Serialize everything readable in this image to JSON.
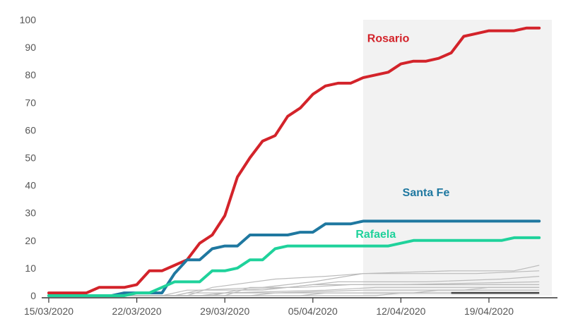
{
  "chart_data": {
    "type": "line",
    "title": "",
    "xlabel": "",
    "ylabel": "",
    "x_start": "2020-03-15",
    "x_end": "2020-04-24",
    "ylim": [
      0,
      100
    ],
    "y_ticks": [
      0,
      10,
      20,
      30,
      40,
      50,
      60,
      70,
      80,
      90,
      100
    ],
    "x_ticks": [
      {
        "date": "2020-03-15",
        "label": "15/03/2020"
      },
      {
        "date": "2020-03-22",
        "label": "22/03/2020"
      },
      {
        "date": "2020-03-29",
        "label": "29/03/2020"
      },
      {
        "date": "2020-04-05",
        "label": "05/04/2020"
      },
      {
        "date": "2020-04-12",
        "label": "12/04/2020"
      },
      {
        "date": "2020-04-19",
        "label": "19/04/2020"
      }
    ],
    "highlight_range": {
      "from": "2020-04-09",
      "to": "2020-04-24"
    },
    "grid": false,
    "series": [
      {
        "name": "Rosario",
        "color": "#d3232a",
        "label_date": "2020-04-11",
        "label_value": 92,
        "points": [
          [
            "2020-03-15",
            1
          ],
          [
            "2020-03-16",
            1
          ],
          [
            "2020-03-17",
            1
          ],
          [
            "2020-03-18",
            1
          ],
          [
            "2020-03-19",
            3
          ],
          [
            "2020-03-20",
            3
          ],
          [
            "2020-03-21",
            3
          ],
          [
            "2020-03-22",
            4
          ],
          [
            "2020-03-23",
            9
          ],
          [
            "2020-03-24",
            9
          ],
          [
            "2020-03-25",
            11
          ],
          [
            "2020-03-26",
            13
          ],
          [
            "2020-03-27",
            19
          ],
          [
            "2020-03-28",
            22
          ],
          [
            "2020-03-29",
            29
          ],
          [
            "2020-03-30",
            43
          ],
          [
            "2020-03-31",
            50
          ],
          [
            "2020-04-01",
            56
          ],
          [
            "2020-04-02",
            58
          ],
          [
            "2020-04-03",
            65
          ],
          [
            "2020-04-04",
            68
          ],
          [
            "2020-04-05",
            73
          ],
          [
            "2020-04-06",
            76
          ],
          [
            "2020-04-07",
            77
          ],
          [
            "2020-04-08",
            77
          ],
          [
            "2020-04-09",
            79
          ],
          [
            "2020-04-10",
            80
          ],
          [
            "2020-04-11",
            81
          ],
          [
            "2020-04-12",
            84
          ],
          [
            "2020-04-13",
            85
          ],
          [
            "2020-04-14",
            85
          ],
          [
            "2020-04-15",
            86
          ],
          [
            "2020-04-16",
            88
          ],
          [
            "2020-04-17",
            94
          ],
          [
            "2020-04-18",
            95
          ],
          [
            "2020-04-19",
            96
          ],
          [
            "2020-04-20",
            96
          ],
          [
            "2020-04-21",
            96
          ],
          [
            "2020-04-22",
            97
          ],
          [
            "2020-04-23",
            97
          ]
        ]
      },
      {
        "name": "Santa Fe",
        "color": "#1f78a0",
        "label_date": "2020-04-14",
        "label_value": 36,
        "points": [
          [
            "2020-03-15",
            0
          ],
          [
            "2020-03-16",
            0
          ],
          [
            "2020-03-17",
            0
          ],
          [
            "2020-03-18",
            0
          ],
          [
            "2020-03-19",
            0
          ],
          [
            "2020-03-20",
            0
          ],
          [
            "2020-03-21",
            1
          ],
          [
            "2020-03-22",
            1
          ],
          [
            "2020-03-23",
            1
          ],
          [
            "2020-03-24",
            1
          ],
          [
            "2020-03-25",
            8
          ],
          [
            "2020-03-26",
            13
          ],
          [
            "2020-03-27",
            13
          ],
          [
            "2020-03-28",
            17
          ],
          [
            "2020-03-29",
            18
          ],
          [
            "2020-03-30",
            18
          ],
          [
            "2020-03-31",
            22
          ],
          [
            "2020-04-01",
            22
          ],
          [
            "2020-04-02",
            22
          ],
          [
            "2020-04-03",
            22
          ],
          [
            "2020-04-04",
            23
          ],
          [
            "2020-04-05",
            23
          ],
          [
            "2020-04-06",
            26
          ],
          [
            "2020-04-07",
            26
          ],
          [
            "2020-04-08",
            26
          ],
          [
            "2020-04-09",
            27
          ],
          [
            "2020-04-10",
            27
          ],
          [
            "2020-04-11",
            27
          ],
          [
            "2020-04-12",
            27
          ],
          [
            "2020-04-13",
            27
          ],
          [
            "2020-04-14",
            27
          ],
          [
            "2020-04-15",
            27
          ],
          [
            "2020-04-16",
            27
          ],
          [
            "2020-04-17",
            27
          ],
          [
            "2020-04-18",
            27
          ],
          [
            "2020-04-19",
            27
          ],
          [
            "2020-04-20",
            27
          ],
          [
            "2020-04-21",
            27
          ],
          [
            "2020-04-22",
            27
          ],
          [
            "2020-04-23",
            27
          ]
        ]
      },
      {
        "name": "Rafaela",
        "color": "#1fd29b",
        "label_date": "2020-04-10",
        "label_value": 21,
        "points": [
          [
            "2020-03-15",
            0
          ],
          [
            "2020-03-16",
            0
          ],
          [
            "2020-03-17",
            0
          ],
          [
            "2020-03-18",
            0
          ],
          [
            "2020-03-19",
            0
          ],
          [
            "2020-03-20",
            0
          ],
          [
            "2020-03-21",
            0
          ],
          [
            "2020-03-22",
            1
          ],
          [
            "2020-03-23",
            1
          ],
          [
            "2020-03-24",
            3
          ],
          [
            "2020-03-25",
            5
          ],
          [
            "2020-03-26",
            5
          ],
          [
            "2020-03-27",
            5
          ],
          [
            "2020-03-28",
            9
          ],
          [
            "2020-03-29",
            9
          ],
          [
            "2020-03-30",
            10
          ],
          [
            "2020-03-31",
            13
          ],
          [
            "2020-04-01",
            13
          ],
          [
            "2020-04-02",
            17
          ],
          [
            "2020-04-03",
            18
          ],
          [
            "2020-04-04",
            18
          ],
          [
            "2020-04-05",
            18
          ],
          [
            "2020-04-06",
            18
          ],
          [
            "2020-04-07",
            18
          ],
          [
            "2020-04-08",
            18
          ],
          [
            "2020-04-09",
            18
          ],
          [
            "2020-04-10",
            18
          ],
          [
            "2020-04-11",
            18
          ],
          [
            "2020-04-12",
            19
          ],
          [
            "2020-04-13",
            20
          ],
          [
            "2020-04-14",
            20
          ],
          [
            "2020-04-15",
            20
          ],
          [
            "2020-04-16",
            20
          ],
          [
            "2020-04-17",
            20
          ],
          [
            "2020-04-18",
            20
          ],
          [
            "2020-04-19",
            20
          ],
          [
            "2020-04-20",
            20
          ],
          [
            "2020-04-21",
            21
          ],
          [
            "2020-04-22",
            21
          ],
          [
            "2020-04-23",
            21
          ]
        ]
      }
    ],
    "background_series": [
      {
        "color": "#bbbbbb",
        "points": [
          [
            "2020-03-15",
            0
          ],
          [
            "2020-03-25",
            0
          ],
          [
            "2020-03-27",
            2
          ],
          [
            "2020-04-01",
            3
          ],
          [
            "2020-04-05",
            5
          ],
          [
            "2020-04-09",
            8
          ],
          [
            "2020-04-16",
            9
          ],
          [
            "2020-04-21",
            9
          ],
          [
            "2020-04-22",
            10
          ],
          [
            "2020-04-23",
            11
          ]
        ]
      },
      {
        "color": "#bbbbbb",
        "points": [
          [
            "2020-03-15",
            0
          ],
          [
            "2020-03-26",
            0
          ],
          [
            "2020-03-28",
            3
          ],
          [
            "2020-04-02",
            6
          ],
          [
            "2020-04-06",
            7
          ],
          [
            "2020-04-09",
            8
          ],
          [
            "2020-04-18",
            8
          ],
          [
            "2020-04-23",
            9
          ]
        ]
      },
      {
        "color": "#bbbbbb",
        "points": [
          [
            "2020-03-15",
            0
          ],
          [
            "2020-03-28",
            0
          ],
          [
            "2020-03-30",
            2
          ],
          [
            "2020-04-03",
            3
          ],
          [
            "2020-04-07",
            5
          ],
          [
            "2020-04-14",
            5
          ],
          [
            "2020-04-20",
            6
          ],
          [
            "2020-04-23",
            7
          ]
        ]
      },
      {
        "color": "#bbbbbb",
        "points": [
          [
            "2020-03-15",
            0
          ],
          [
            "2020-03-24",
            0
          ],
          [
            "2020-03-26",
            2
          ],
          [
            "2020-04-01",
            2
          ],
          [
            "2020-04-05",
            4
          ],
          [
            "2020-04-12",
            4
          ],
          [
            "2020-04-23",
            5
          ]
        ]
      },
      {
        "color": "#bbbbbb",
        "points": [
          [
            "2020-03-15",
            0
          ],
          [
            "2020-03-29",
            0
          ],
          [
            "2020-03-31",
            3
          ],
          [
            "2020-04-04",
            3
          ],
          [
            "2020-04-08",
            4
          ],
          [
            "2020-04-23",
            4
          ]
        ]
      },
      {
        "color": "#bbbbbb",
        "points": [
          [
            "2020-03-15",
            0
          ],
          [
            "2020-03-27",
            0
          ],
          [
            "2020-03-29",
            1
          ],
          [
            "2020-04-06",
            2
          ],
          [
            "2020-04-10",
            3
          ],
          [
            "2020-04-23",
            3
          ]
        ]
      },
      {
        "color": "#bbbbbb",
        "points": [
          [
            "2020-03-15",
            0
          ],
          [
            "2020-03-31",
            0
          ],
          [
            "2020-04-02",
            1
          ],
          [
            "2020-04-09",
            2
          ],
          [
            "2020-04-17",
            2
          ],
          [
            "2020-04-19",
            3
          ],
          [
            "2020-04-23",
            3
          ]
        ]
      },
      {
        "color": "#bbbbbb",
        "points": [
          [
            "2020-03-15",
            0
          ],
          [
            "2020-04-04",
            0
          ],
          [
            "2020-04-06",
            1
          ],
          [
            "2020-04-13",
            1
          ],
          [
            "2020-04-15",
            2
          ],
          [
            "2020-04-23",
            2
          ]
        ]
      },
      {
        "color": "#bbbbbb",
        "points": [
          [
            "2020-03-15",
            0
          ],
          [
            "2020-03-25",
            0
          ],
          [
            "2020-03-26",
            1
          ],
          [
            "2020-04-23",
            1
          ]
        ]
      },
      {
        "color": "#bbbbbb",
        "points": [
          [
            "2020-03-15",
            0
          ],
          [
            "2020-04-10",
            0
          ],
          [
            "2020-04-12",
            1
          ],
          [
            "2020-04-23",
            1
          ]
        ]
      },
      {
        "color": "#444444",
        "points": [
          [
            "2020-04-16",
            1
          ],
          [
            "2020-04-23",
            1
          ]
        ]
      }
    ]
  }
}
